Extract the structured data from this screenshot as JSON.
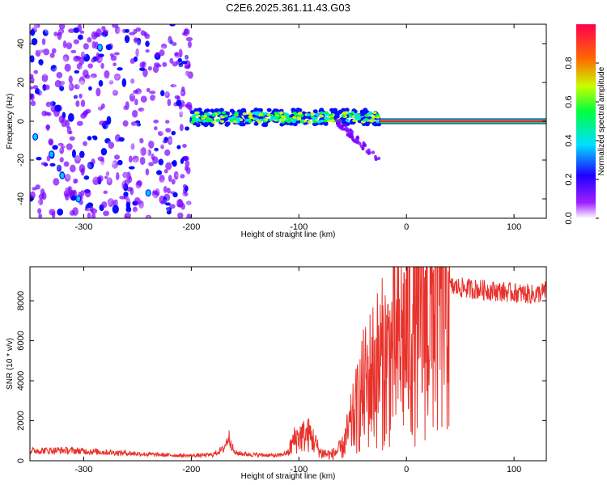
{
  "title": "C2E6.2025.361.11.43.G03",
  "chart_data": [
    {
      "type": "heatmap",
      "title": "C2E6.2025.361.11.43.G03",
      "xlabel": "Height of straight line (km)",
      "ylabel": "Frequency (Hz)",
      "xlim": [
        -350,
        130
      ],
      "ylim": [
        -50,
        50
      ],
      "xticks": [
        -300,
        -200,
        -100,
        0,
        100
      ],
      "yticks": [
        -40,
        -20,
        0,
        20,
        40
      ],
      "colorbar": {
        "label": "Normalized spectral amplitude",
        "range": [
          0,
          1
        ],
        "ticks": [
          "0.0",
          "0.2",
          "0.4",
          "0.6",
          "0.8"
        ],
        "colormap": [
          "#ffffff",
          "#7b00ff",
          "#0000ff",
          "#00e0ff",
          "#00ff40",
          "#c8ff00",
          "#ff6a00",
          "#ff0040"
        ]
      },
      "features": [
        {
          "name": "noise scatter",
          "x": [
            -350,
            -200
          ],
          "freq_range": [
            -50,
            50
          ],
          "amplitude": 0.15
        },
        {
          "name": "sparse streaks",
          "x": [
            -200,
            -20
          ],
          "freq_range": [
            -50,
            50
          ],
          "amplitude": 0.05
        },
        {
          "name": "signal band",
          "x": [
            -200,
            -25
          ],
          "freq_center": 2,
          "amplitude": 0.45
        },
        {
          "name": "drift tail",
          "x": [
            -65,
            -25
          ],
          "freq": [
            0,
            -20
          ],
          "amplitude": 0.2
        },
        {
          "name": "steady carrier",
          "x": [
            -25,
            130
          ],
          "freq_center": 0,
          "amplitude": 1.0
        }
      ]
    },
    {
      "type": "line",
      "xlabel": "Height of straight line (km)",
      "ylabel": "SNR (10 * v/v)",
      "xlim": [
        -350,
        130
      ],
      "ylim": [
        0,
        9700
      ],
      "xticks": [
        -300,
        -200,
        -100,
        0,
        100
      ],
      "yticks": [
        0,
        2000,
        4000,
        6000,
        8000
      ],
      "series": [
        {
          "name": "SNR",
          "color": "#e8312a",
          "x": [
            -350,
            -320,
            -300,
            -280,
            -260,
            -240,
            -220,
            -200,
            -180,
            -170,
            -165,
            -160,
            -150,
            -140,
            -130,
            -120,
            -110,
            -105,
            -100,
            -90,
            -85,
            -80,
            -70,
            -60,
            -50,
            -40,
            -30,
            -20,
            -10,
            0,
            10,
            20,
            30,
            40,
            60,
            80,
            100,
            120,
            130
          ],
          "values": [
            500,
            520,
            480,
            430,
            380,
            320,
            280,
            250,
            300,
            600,
            1200,
            400,
            330,
            300,
            280,
            250,
            400,
            1000,
            1200,
            1300,
            900,
            400,
            300,
            600,
            2000,
            3500,
            4500,
            5000,
            5500,
            6300,
            7000,
            7500,
            8200,
            8700,
            8600,
            8500,
            8400,
            8300,
            8500
          ]
        }
      ]
    }
  ]
}
